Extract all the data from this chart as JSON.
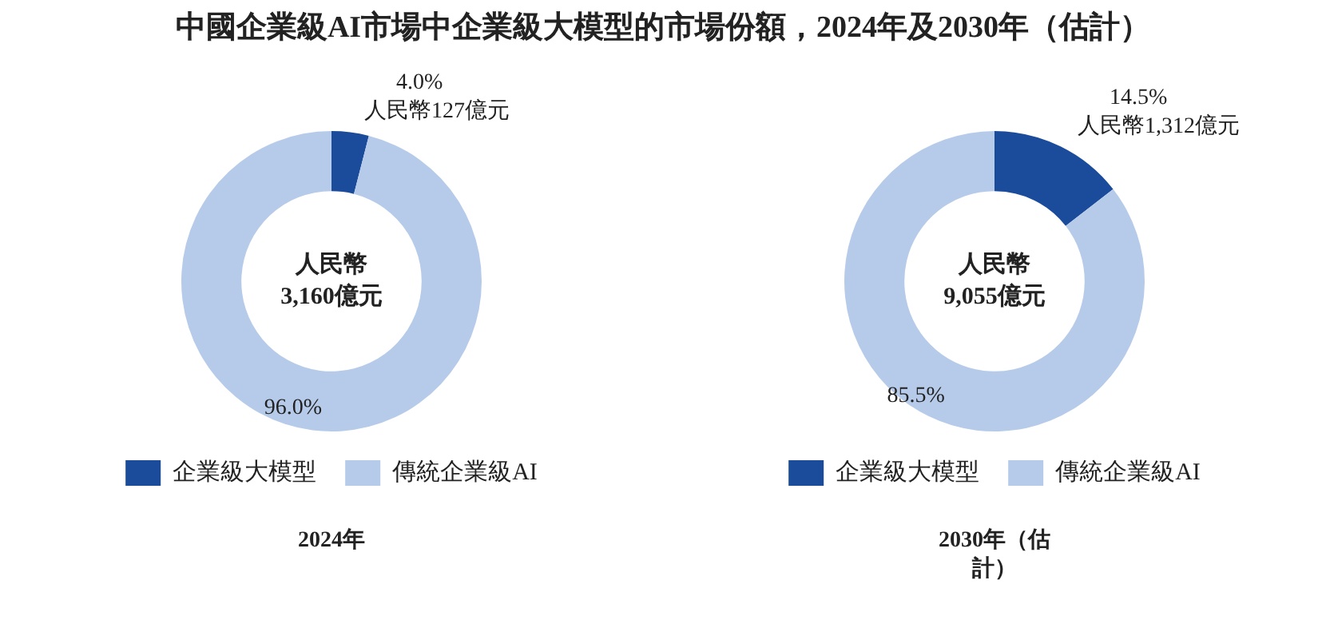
{
  "chart_data": [
    {
      "type": "donut",
      "title": "中國企業級AI市場中企業級大模型的市場份額，2024年及2030年（估計）",
      "categories": [
        "企業級大模型",
        "傳統企業級AI"
      ],
      "values": [
        4.0,
        96.0
      ],
      "colors": [
        "#1b4b9b",
        "#b6cbe9"
      ],
      "value_labels": [
        "4.0%\n人民幣127億元",
        "96.0%"
      ],
      "annotations": [
        "人民幣\n3,160億元"
      ],
      "xlabel": "2024年",
      "legend": "bottom"
    },
    {
      "type": "donut",
      "categories": [
        "企業級大模型",
        "傳統企業級AI"
      ],
      "values": [
        14.5,
        85.5
      ],
      "colors": [
        "#1b4b9b",
        "#b6cbe9"
      ],
      "value_labels": [
        "14.5%\n人民幣1,312億元",
        "85.5%"
      ],
      "annotations": [
        "人民幣\n9,055億元"
      ],
      "xlabel": "2030年（估計）",
      "legend": "bottom"
    }
  ]
}
